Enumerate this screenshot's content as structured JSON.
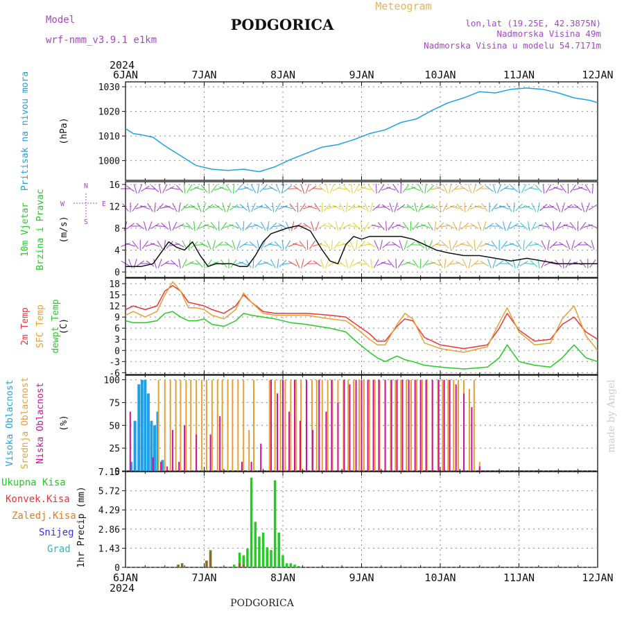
{
  "header": {
    "model_label": "Model",
    "model_name": "wrf-nmm_v3.9.1 e1km",
    "title": "PODGORICA",
    "subtitle": "Meteogram",
    "coords": "lon,lat (19.25E, 42.3875N)",
    "elevation": "Nadmorska Visina 49m",
    "model_elevation": "Nadmorska Visina u modelu 54.7171m",
    "footer_title": "PODGORICA",
    "credit": "made by Angel",
    "year_top": "2024",
    "year_bottom": "2024"
  },
  "colors": {
    "pressure": "#1ea0e6",
    "wind_label": "#22cc22",
    "temp2m": "#ee3333",
    "sfc": "#e6a032",
    "dewpt": "#22cc22",
    "cloud_high": "#1ea0e6",
    "cloud_mid": "#e6a032",
    "cloud_low": "#cc1199",
    "precip_total": "#22cc22",
    "precip_conv": "#ee3333",
    "precip_frz": "#ee7722",
    "snow": "#3333ee",
    "grad": "#22bbbb",
    "meta": "#aa44cc",
    "meteogram": "#e6b450"
  },
  "chart_data": [
    {
      "type": "line",
      "panel": "pressure",
      "ylabel_lines": [
        "Pritisak na nivou mora"
      ],
      "unit": "(hPa)",
      "x_ticks": [
        "6JAN",
        "7JAN",
        "8JAN",
        "9JAN",
        "10JAN",
        "11JAN",
        "12JAN"
      ],
      "x_range_days": [
        0,
        6
      ],
      "ylim": [
        992,
        1032
      ],
      "y_ticks": [
        "1000",
        "1010",
        "1020",
        "1030"
      ],
      "y_tick_values": [
        1000,
        1010,
        1020,
        1030
      ],
      "grid": true,
      "series": [
        {
          "name": "Pritisak na nivou mora",
          "x": [
            0,
            0.1,
            0.2,
            0.35,
            0.5,
            0.7,
            0.9,
            1.1,
            1.3,
            1.5,
            1.7,
            1.9,
            2.1,
            2.3,
            2.5,
            2.7,
            2.9,
            3.1,
            3.3,
            3.5,
            3.7,
            3.9,
            4.1,
            4.3,
            4.5,
            4.7,
            4.9,
            5.1,
            5.3,
            5.5,
            5.7,
            5.9,
            6.0
          ],
          "values": [
            1013,
            1011,
            1010.5,
            1009.5,
            1006,
            1002,
            998,
            996.5,
            996,
            996.5,
            995.5,
            997.5,
            1000.5,
            1003,
            1005.5,
            1006.5,
            1008.5,
            1011,
            1012.5,
            1015.5,
            1017,
            1020.5,
            1023.5,
            1025.5,
            1028,
            1027.5,
            1029,
            1029.5,
            1029,
            1027.5,
            1025.5,
            1024.5,
            1023.5
          ]
        }
      ]
    },
    {
      "type": "line",
      "panel": "wind",
      "ylabel_lines": [
        "10m Vjetar",
        "Brzina i Pravac"
      ],
      "unit": "(m/s)",
      "compass": [
        "N",
        "E",
        "S",
        "W"
      ],
      "x_range_days": [
        0,
        6
      ],
      "ylim": [
        -1,
        16.5
      ],
      "y_ticks": [
        "0",
        "4",
        "8",
        "12",
        "16"
      ],
      "y_tick_values": [
        0,
        4,
        8,
        12,
        16
      ],
      "grid": true,
      "series": [
        {
          "name": "10m Vjetar",
          "x": [
            0,
            0.2,
            0.35,
            0.45,
            0.55,
            0.65,
            0.75,
            0.85,
            0.95,
            1.05,
            1.15,
            1.25,
            1.35,
            1.45,
            1.55,
            1.65,
            1.75,
            1.85,
            1.95,
            2.05,
            2.2,
            2.35,
            2.5,
            2.6,
            2.7,
            2.8,
            2.9,
            3.0,
            3.1,
            3.2,
            3.35,
            3.5,
            3.65,
            3.8,
            3.95,
            4.1,
            4.3,
            4.5,
            4.7,
            4.9,
            5.1,
            5.3,
            5.5,
            5.7,
            5.9,
            6.0
          ],
          "values": [
            1,
            1,
            1.5,
            3.5,
            5.5,
            4.5,
            4,
            5.5,
            3,
            1,
            1.5,
            1.5,
            1.5,
            1,
            1,
            3,
            5.5,
            7,
            7.5,
            8,
            8.5,
            7.5,
            4,
            2,
            1.5,
            5,
            6.5,
            6,
            6.5,
            6.5,
            6.5,
            6.5,
            6,
            5,
            4,
            3.5,
            3,
            3,
            2.5,
            2,
            2.5,
            2,
            1.5,
            1.5,
            1.5,
            1.5
          ]
        }
      ]
    },
    {
      "type": "line",
      "panel": "temperature",
      "ylabel_lines": [
        "2m Temp",
        "SFC Temp",
        "dewpt Temp"
      ],
      "unit": "(C)",
      "x_range_days": [
        0,
        6
      ],
      "ylim": [
        -6.5,
        19.5
      ],
      "y_ticks": [
        "-6",
        "-3",
        "0",
        "3",
        "6",
        "9",
        "12",
        "15",
        "18"
      ],
      "y_tick_values": [
        -6,
        -3,
        0,
        3,
        6,
        9,
        12,
        15,
        18
      ],
      "grid": true,
      "series": [
        {
          "name": "2m Temp",
          "x": [
            0,
            0.1,
            0.25,
            0.4,
            0.5,
            0.6,
            0.7,
            0.8,
            0.9,
            1.0,
            1.1,
            1.25,
            1.4,
            1.5,
            1.6,
            1.75,
            1.9,
            2.1,
            2.3,
            2.6,
            2.8,
            2.9,
            3.1,
            3.2,
            3.3,
            3.45,
            3.55,
            3.65,
            3.8,
            4.0,
            4.3,
            4.6,
            4.75,
            4.85,
            5.0,
            5.2,
            5.4,
            5.55,
            5.7,
            5.85,
            6.0
          ],
          "values": [
            11,
            12,
            11,
            12,
            16,
            17.5,
            16,
            13,
            12.5,
            12,
            11,
            10,
            12,
            15,
            13,
            10.5,
            10,
            10,
            10,
            9.5,
            9,
            7.5,
            4.5,
            2.5,
            2.5,
            6.5,
            8.5,
            8,
            3.5,
            1.5,
            0.5,
            1.5,
            6,
            10,
            5.5,
            2.5,
            3,
            7,
            9,
            5,
            3
          ]
        },
        {
          "name": "SFC Temp",
          "x": [
            0,
            0.1,
            0.25,
            0.4,
            0.5,
            0.6,
            0.7,
            0.8,
            0.9,
            1.0,
            1.1,
            1.25,
            1.4,
            1.5,
            1.6,
            1.75,
            1.9,
            2.1,
            2.3,
            2.6,
            2.8,
            2.9,
            3.1,
            3.2,
            3.3,
            3.45,
            3.55,
            3.65,
            3.8,
            4.0,
            4.3,
            4.6,
            4.75,
            4.85,
            5.0,
            5.2,
            5.4,
            5.55,
            5.7,
            5.85,
            6.0
          ],
          "values": [
            9.5,
            10.5,
            9,
            10.5,
            15,
            18.5,
            16,
            11.5,
            11.5,
            11,
            9.5,
            8.5,
            11,
            15.5,
            13,
            10,
            9.5,
            9.5,
            9.5,
            8.5,
            8,
            6.5,
            3,
            1.5,
            1.5,
            7,
            10,
            8.5,
            2,
            0.5,
            -0.5,
            1,
            7.5,
            11.5,
            5,
            1.5,
            2,
            8.5,
            12,
            4,
            0
          ]
        },
        {
          "name": "dewpt Temp",
          "x": [
            0,
            0.1,
            0.25,
            0.4,
            0.5,
            0.6,
            0.7,
            0.8,
            0.9,
            1.0,
            1.1,
            1.25,
            1.4,
            1.5,
            1.6,
            1.75,
            1.9,
            2.1,
            2.3,
            2.6,
            2.8,
            2.9,
            3.1,
            3.2,
            3.3,
            3.45,
            3.55,
            3.65,
            3.8,
            4.0,
            4.3,
            4.6,
            4.75,
            4.85,
            5.0,
            5.2,
            5.4,
            5.55,
            5.7,
            5.85,
            6.0
          ],
          "values": [
            8,
            7.5,
            7.5,
            8,
            10,
            10.5,
            9,
            8,
            8,
            8.5,
            7,
            6.5,
            8,
            10,
            9.5,
            9,
            8.5,
            7.5,
            7,
            6,
            5,
            3,
            -0.5,
            -2,
            -3,
            -1.5,
            -2.5,
            -3,
            -4,
            -4.5,
            -5,
            -4.5,
            -2,
            1.5,
            -3,
            -4,
            -4.5,
            -2,
            1.5,
            -2,
            -3
          ]
        }
      ]
    },
    {
      "type": "bar",
      "panel": "clouds",
      "ylabel_lines": [
        "Visoka Oblacnost",
        "Srednja Oblacnost",
        "Niska Oblacnost"
      ],
      "unit": "(%)",
      "x_range_days": [
        0,
        6
      ],
      "ylim": [
        0,
        105
      ],
      "y_ticks": [
        "0",
        "25",
        "50",
        "75",
        "100"
      ],
      "y_tick_values": [
        0,
        25,
        50,
        75,
        100
      ],
      "grid": true,
      "series": [
        {
          "name": "Visoka Oblacnost",
          "x": [
            0.07,
            0.12,
            0.17,
            0.21,
            0.25,
            0.29,
            0.33,
            0.37,
            0.41,
            0.47
          ],
          "values": [
            10,
            55,
            95,
            100,
            100,
            85,
            55,
            50,
            65,
            12
          ]
        },
        {
          "name": "Srednja Oblacnost",
          "x": [
            0.42,
            0.5,
            0.57,
            0.64,
            0.7,
            0.77,
            0.83,
            0.9,
            0.97,
            1.03,
            1.1,
            1.17,
            1.23,
            1.3,
            1.36,
            1.43,
            1.5,
            1.57,
            1.63,
            1.83,
            1.9,
            1.97,
            2.03,
            2.1,
            2.17,
            2.23,
            2.3,
            2.37,
            2.43,
            2.5,
            2.57,
            2.63,
            2.7,
            2.77,
            2.83,
            2.9,
            2.97,
            3.03,
            3.1,
            3.17,
            3.23,
            3.3,
            3.37,
            3.43,
            3.5,
            3.57,
            3.63,
            3.7,
            3.77,
            3.83,
            3.9,
            3.97,
            4.03,
            4.1,
            4.17,
            4.23,
            4.3,
            4.37,
            4.43,
            4.5
          ],
          "values": [
            100,
            100,
            100,
            100,
            100,
            100,
            100,
            100,
            100,
            100,
            100,
            100,
            100,
            100,
            100,
            100,
            100,
            45,
            100,
            100,
            100,
            100,
            100,
            100,
            100,
            100,
            100,
            100,
            100,
            100,
            100,
            100,
            100,
            100,
            100,
            100,
            100,
            100,
            100,
            100,
            100,
            100,
            100,
            100,
            100,
            100,
            100,
            100,
            100,
            100,
            100,
            100,
            100,
            100,
            100,
            100,
            100,
            90,
            100,
            10
          ]
        },
        {
          "name": "Niska Oblacnost",
          "x": [
            0.06,
            0.35,
            0.45,
            0.53,
            0.6,
            0.68,
            0.75,
            0.9,
            1.08,
            1.2,
            1.48,
            1.6,
            1.72,
            1.85,
            1.93,
            2.0,
            2.08,
            2.15,
            2.22,
            2.3,
            2.38,
            2.46,
            2.55,
            2.62,
            2.7,
            2.78,
            2.85,
            2.93,
            3.0,
            3.08,
            3.15,
            3.22,
            3.3,
            3.38,
            3.45,
            3.52,
            3.6,
            3.68,
            3.75,
            3.82,
            3.9,
            3.98,
            4.05,
            4.12,
            4.2,
            4.3,
            4.4,
            4.5
          ],
          "values": [
            65,
            15,
            10,
            5,
            45,
            10,
            50,
            40,
            40,
            60,
            10,
            10,
            30,
            100,
            85,
            100,
            65,
            100,
            55,
            100,
            45,
            100,
            65,
            100,
            75,
            100,
            95,
            100,
            100,
            100,
            100,
            100,
            100,
            100,
            100,
            100,
            100,
            100,
            100,
            100,
            100,
            100,
            100,
            100,
            95,
            85,
            70,
            5
          ]
        }
      ]
    },
    {
      "type": "bar",
      "panel": "precip",
      "ylabel_lines": [
        "1hr Precip (mm)"
      ],
      "legend": [
        "Ukupna Kisa",
        "Konvek.Kisa",
        "Zaledj.Kisa",
        "Snijeg",
        "Grad"
      ],
      "x_range_days": [
        0,
        6
      ],
      "ylim": [
        0,
        7.15
      ],
      "y_ticks": [
        "0",
        "1.43",
        "2.86",
        "4.29",
        "5.72",
        "7.15"
      ],
      "y_tick_values": [
        0,
        1.43,
        2.86,
        4.29,
        5.72,
        7.15
      ],
      "grid": true,
      "x_ticks_bottom": [
        "6JAN",
        "7JAN",
        "8JAN",
        "9JAN",
        "10JAN",
        "11JAN",
        "12JAN"
      ],
      "series": [
        {
          "name": "Ukupna Kisa",
          "x": [
            0.67,
            0.72,
            1.03,
            1.08,
            1.38,
            1.45,
            1.5,
            1.55,
            1.6,
            1.65,
            1.7,
            1.75,
            1.8,
            1.85,
            1.9,
            1.95,
            2.0,
            2.05,
            2.1,
            2.15,
            2.2
          ],
          "values": [
            0.2,
            0.3,
            0.5,
            1.3,
            0.2,
            1.1,
            0.9,
            1.4,
            6.7,
            3.4,
            2.3,
            2.6,
            1.5,
            1.3,
            6.5,
            2.6,
            0.9,
            0.3,
            0.3,
            0.2,
            0.1
          ]
        },
        {
          "name": "Konvek.Kisa",
          "x": [
            0.67,
            0.72,
            1.03,
            1.08,
            1.45,
            1.5
          ],
          "values": [
            0.2,
            0.3,
            0.5,
            1.2,
            0.3,
            0.2
          ]
        }
      ]
    }
  ]
}
